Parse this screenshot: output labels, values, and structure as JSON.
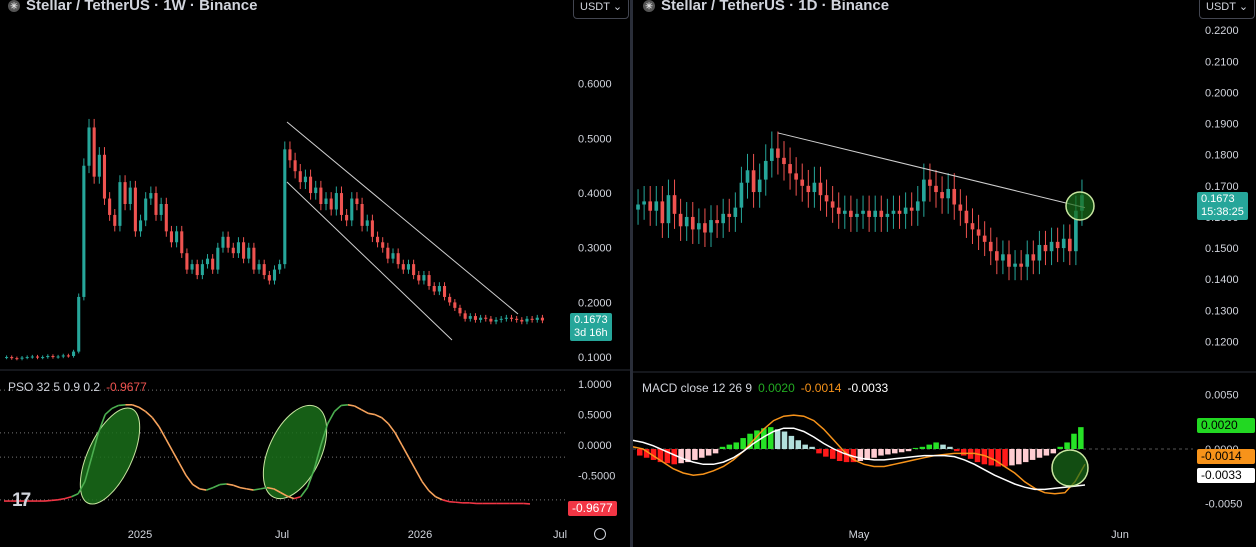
{
  "colors": {
    "up": "#26a69a",
    "down": "#ef5350",
    "green_ellipse": "#1f7a1f",
    "price_badge": "#26a69a"
  },
  "left": {
    "title": "Stellar / TetherUS · 1W · Binance",
    "currency": "USDT",
    "logo_glyph": "✳",
    "price_badge": {
      "price": "0.1673",
      "time": "3d 16h"
    },
    "indicator": {
      "label": "PSO 32 5 0.9 0.2",
      "value": "-0.9677"
    },
    "x_labels": [
      "2025",
      "Jul",
      "2026",
      "Jul"
    ],
    "y_labels": [
      "0.6000",
      "0.5000",
      "0.4000",
      "0.3000",
      "0.2000",
      "0.1000"
    ],
    "ind_y_labels": [
      "1.0000",
      "0.5000",
      "0.0000",
      "-0.5000"
    ],
    "tv_logo": "17"
  },
  "right": {
    "title": "Stellar / TetherUS · 1D · Binance",
    "currency": "USDT",
    "logo_glyph": "✳",
    "price_badge": {
      "price": "0.1673",
      "time": "15:38:25"
    },
    "indicator": {
      "label": "MACD close 12 26 9",
      "v1": "0.0020",
      "v2": "-0.0014",
      "v3": "-0.0033"
    },
    "x_labels": [
      "May",
      "Jun"
    ],
    "y_labels": [
      "0.2200",
      "0.2100",
      "0.2000",
      "0.1900",
      "0.1800",
      "0.1700",
      "0.1600",
      "0.1500",
      "0.1400",
      "0.1300",
      "0.1200"
    ],
    "ind_y_labels": [
      "0.0050",
      "0.0000",
      "-0.0050"
    ],
    "macd_badges": [
      "0.0020",
      "-0.0014",
      "-0.0033"
    ]
  },
  "chart_data": [
    {
      "type": "candlestick",
      "title": "Stellar / TetherUS · 1W · Binance",
      "ylim": [
        0.08,
        0.68
      ],
      "x_ticks": [
        "2025",
        "Jul",
        "2026",
        "Jul"
      ],
      "close_series": [
        0.1,
        0.098,
        0.097,
        0.099,
        0.1,
        0.101,
        0.099,
        0.1,
        0.102,
        0.1,
        0.101,
        0.103,
        0.102,
        0.11,
        0.21,
        0.45,
        0.52,
        0.43,
        0.47,
        0.39,
        0.36,
        0.34,
        0.42,
        0.38,
        0.41,
        0.33,
        0.35,
        0.39,
        0.4,
        0.36,
        0.38,
        0.33,
        0.31,
        0.33,
        0.29,
        0.26,
        0.27,
        0.25,
        0.27,
        0.28,
        0.26,
        0.3,
        0.32,
        0.3,
        0.29,
        0.31,
        0.28,
        0.3,
        0.26,
        0.27,
        0.25,
        0.24,
        0.26,
        0.27,
        0.48,
        0.46,
        0.44,
        0.42,
        0.43,
        0.4,
        0.41,
        0.38,
        0.39,
        0.37,
        0.4,
        0.36,
        0.35,
        0.39,
        0.38,
        0.34,
        0.35,
        0.32,
        0.31,
        0.3,
        0.28,
        0.29,
        0.27,
        0.26,
        0.27,
        0.25,
        0.24,
        0.25,
        0.23,
        0.22,
        0.23,
        0.21,
        0.2,
        0.19,
        0.18,
        0.17,
        0.175,
        0.168,
        0.172,
        0.17,
        0.165,
        0.168,
        0.17,
        0.172,
        0.17,
        0.168,
        0.165,
        0.17,
        0.168,
        0.172,
        0.167
      ],
      "price": 0.1673,
      "price_time": "3d 16h",
      "indicator": {
        "name": "PSO 32 5 0.9 0.2",
        "value": -0.9677,
        "ylim": [
          -1.1,
          1.1
        ],
        "series": [
          -0.92,
          -0.92,
          -0.92,
          -0.92,
          -0.92,
          -0.92,
          -0.92,
          -0.91,
          -0.9,
          -0.88,
          -0.85,
          -0.8,
          -0.6,
          -0.2,
          0.2,
          0.5,
          0.6,
          0.65,
          0.66,
          0.66,
          0.62,
          0.55,
          0.45,
          0.3,
          0.1,
          -0.1,
          -0.3,
          -0.5,
          -0.65,
          -0.72,
          -0.74,
          -0.7,
          -0.65,
          -0.64,
          -0.66,
          -0.7,
          -0.72,
          -0.74,
          -0.72,
          -0.7,
          -0.72,
          -0.78,
          -0.84,
          -0.88,
          -0.85,
          -0.7,
          -0.4,
          0.0,
          0.35,
          0.55,
          0.65,
          0.66,
          0.64,
          0.58,
          0.52,
          0.5,
          0.45,
          0.35,
          0.2,
          0.0,
          -0.2,
          -0.4,
          -0.6,
          -0.75,
          -0.85,
          -0.9,
          -0.93,
          -0.94,
          -0.95,
          -0.95,
          -0.96,
          -0.96,
          -0.96,
          -0.96,
          -0.96,
          -0.96,
          -0.96,
          -0.96,
          -0.967
        ]
      }
    },
    {
      "type": "candlestick",
      "title": "Stellar / TetherUS · 1D · Binance",
      "ylim": [
        0.112,
        0.222
      ],
      "x_ticks": [
        "May",
        "Jun"
      ],
      "close_series": [
        0.164,
        0.165,
        0.162,
        0.165,
        0.158,
        0.167,
        0.161,
        0.157,
        0.16,
        0.156,
        0.158,
        0.155,
        0.159,
        0.158,
        0.161,
        0.16,
        0.163,
        0.171,
        0.175,
        0.168,
        0.172,
        0.178,
        0.182,
        0.179,
        0.177,
        0.174,
        0.172,
        0.17,
        0.168,
        0.171,
        0.167,
        0.165,
        0.163,
        0.161,
        0.162,
        0.16,
        0.161,
        0.162,
        0.16,
        0.162,
        0.16,
        0.161,
        0.162,
        0.161,
        0.163,
        0.162,
        0.165,
        0.172,
        0.17,
        0.168,
        0.166,
        0.169,
        0.164,
        0.162,
        0.158,
        0.156,
        0.154,
        0.152,
        0.149,
        0.146,
        0.148,
        0.144,
        0.145,
        0.144,
        0.148,
        0.146,
        0.151,
        0.149,
        0.152,
        0.15,
        0.153,
        0.149,
        0.162,
        0.167
      ],
      "trendline": [
        [
          0.187
        ],
        [
          0.163
        ]
      ],
      "price": 0.1673,
      "price_time": "15:38:25",
      "indicator": {
        "name": "MACD close 12 26 9",
        "histogram_last": 0.002,
        "macd_last": -0.0014,
        "signal_last": -0.0033,
        "ylim": [
          -0.0065,
          0.0065
        ],
        "histogram": [
          -0.0006,
          -0.0008,
          -0.001,
          -0.0012,
          -0.0013,
          -0.0014,
          -0.0013,
          -0.0012,
          -0.001,
          -0.0008,
          -0.0006,
          -0.0004,
          0.0002,
          0.0004,
          0.0006,
          0.001,
          0.0014,
          0.0017,
          0.0019,
          0.002,
          0.0018,
          0.0016,
          0.0012,
          0.0008,
          0.0004,
          0.0002,
          -0.0004,
          -0.0007,
          -0.0009,
          -0.0011,
          -0.0012,
          -0.0012,
          -0.0011,
          -0.001,
          -0.0008,
          -0.0006,
          -0.0005,
          -0.0004,
          -0.0003,
          -0.0002,
          0.0001,
          0.0002,
          0.0004,
          0.0006,
          0.0004,
          0.0002,
          -0.0002,
          -0.0006,
          -0.0009,
          -0.0012,
          -0.0014,
          -0.0015,
          -0.0016,
          -0.0016,
          -0.0015,
          -0.0014,
          -0.0012,
          -0.001,
          -0.0008,
          -0.0006,
          -0.0004,
          0.0002,
          0.0006,
          0.0014,
          0.002
        ],
        "macd": [
          0.0002,
          0.0,
          -0.0006,
          -0.0012,
          -0.0018,
          -0.0022,
          -0.0024,
          -0.0023,
          -0.002,
          -0.0016,
          -0.001,
          -0.0002,
          0.0008,
          0.0018,
          0.0026,
          0.003,
          0.0031,
          0.003,
          0.0026,
          0.0018,
          0.0008,
          -0.0002,
          -0.001,
          -0.0014,
          -0.0016,
          -0.0016,
          -0.0014,
          -0.0012,
          -0.001,
          -0.0008,
          -0.0006,
          -0.0005,
          -0.0004,
          -0.0004,
          -0.0004,
          -0.0006,
          -0.001,
          -0.0016,
          -0.0022,
          -0.003,
          -0.0036,
          -0.004,
          -0.0041,
          -0.004,
          -0.003,
          -0.0014
        ],
        "signal": [
          0.0008,
          0.0006,
          0.0003,
          -0.0001,
          -0.0005,
          -0.0009,
          -0.0012,
          -0.0014,
          -0.0014,
          -0.0012,
          -0.0008,
          -0.0002,
          0.0005,
          0.0011,
          0.0016,
          0.0019,
          0.0019,
          0.0016,
          0.0011,
          0.0005,
          0.0,
          -0.0004,
          -0.0007,
          -0.0009,
          -0.001,
          -0.001,
          -0.0009,
          -0.0008,
          -0.0007,
          -0.0006,
          -0.0006,
          -0.0006,
          -0.0007,
          -0.001,
          -0.0014,
          -0.0019,
          -0.0024,
          -0.0028,
          -0.0032,
          -0.0035,
          -0.0037,
          -0.0037,
          -0.0036,
          -0.0035,
          -0.0034,
          -0.0033
        ]
      }
    }
  ]
}
